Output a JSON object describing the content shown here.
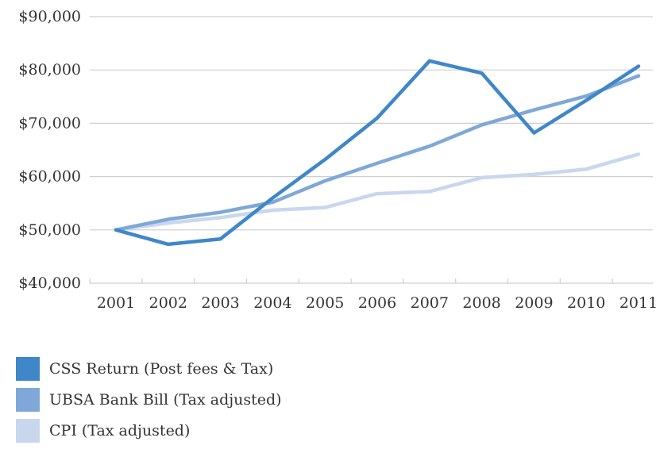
{
  "chart_data": {
    "type": "line",
    "title": "",
    "xlabel": "",
    "ylabel": "",
    "categories": [
      "2001",
      "2002",
      "2003",
      "2004",
      "2005",
      "2006",
      "2007",
      "2008",
      "2009",
      "2010",
      "2011"
    ],
    "ylim": [
      40000,
      90000
    ],
    "y_ticks": [
      40000,
      50000,
      60000,
      70000,
      80000,
      90000
    ],
    "y_tick_labels": [
      "$40,000",
      "$50,000",
      "$60,000",
      "$70,000",
      "$80,000",
      "$90,000"
    ],
    "grid": true,
    "legend_position": "bottom-left",
    "series": [
      {
        "name": "CSS Return (Post fees & Tax)",
        "color": "#3f87c8",
        "values": [
          50000,
          47300,
          48300,
          56000,
          63200,
          71000,
          81700,
          79400,
          68200,
          74300,
          80700
        ]
      },
      {
        "name": "UBSA Bank Bill (Tax adjusted)",
        "color": "#7fa8d8",
        "values": [
          50000,
          52000,
          53300,
          55200,
          59200,
          62500,
          65700,
          69700,
          72500,
          75100,
          78900
        ]
      },
      {
        "name": "CPI (Tax adjusted)",
        "color": "#c9d7ee",
        "values": [
          50000,
          51300,
          52300,
          53700,
          54200,
          56800,
          57200,
          59800,
          60400,
          61400,
          64200
        ]
      }
    ]
  },
  "legend": {
    "items": [
      {
        "label": "CSS Return (Post fees & Tax)",
        "color": "#3f87c8"
      },
      {
        "label": "UBSA Bank Bill (Tax adjusted)",
        "color": "#7fa8d8"
      },
      {
        "label": "CPI (Tax adjusted)",
        "color": "#c9d7ee"
      }
    ]
  }
}
